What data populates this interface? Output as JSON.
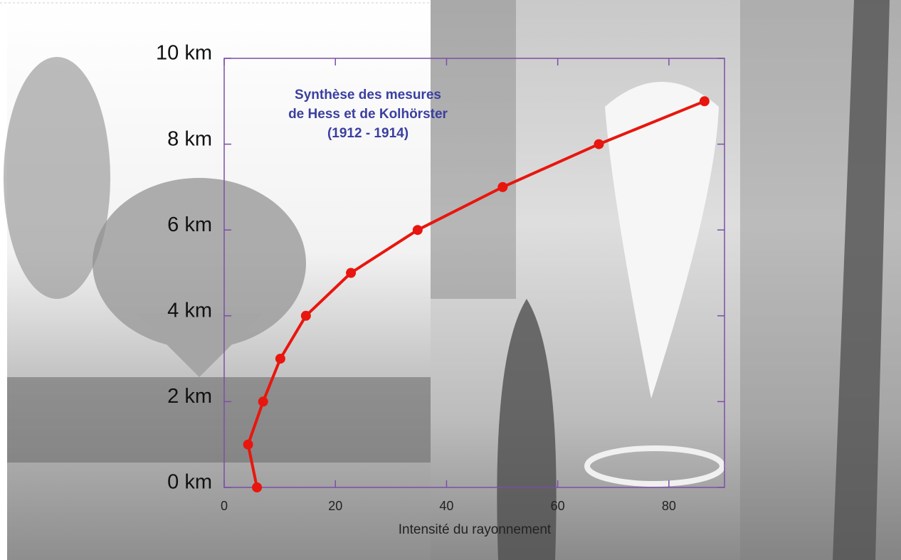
{
  "chart_data": {
    "type": "line",
    "title": [
      "Synthèse des mesures",
      "de Hess et de Kolhörster",
      "(1912 - 1914)"
    ],
    "x_label": "Intensité du rayonnement",
    "x": [
      5.9,
      4.3,
      7.0,
      10.1,
      14.7,
      22.8,
      34.8,
      50.1,
      67.4,
      86.4
    ],
    "series": [
      {
        "color": "#e8160e",
        "values": [
          0,
          1,
          2,
          3,
          4,
          5,
          6,
          7,
          8,
          9
        ]
      }
    ],
    "xlim": [
      0,
      90
    ],
    "xticks": [
      0,
      20,
      40,
      60,
      80
    ],
    "ylim": [
      0,
      10
    ],
    "yticks": [
      {
        "value": 0,
        "label": "0 km"
      },
      {
        "value": 2,
        "label": "2 km"
      },
      {
        "value": 4,
        "label": "4 km"
      },
      {
        "value": 6,
        "label": "6 km"
      },
      {
        "value": 8,
        "label": "8 km"
      },
      {
        "value": 10,
        "label": "10 km"
      }
    ],
    "frame_color": "#7d4ea6"
  }
}
